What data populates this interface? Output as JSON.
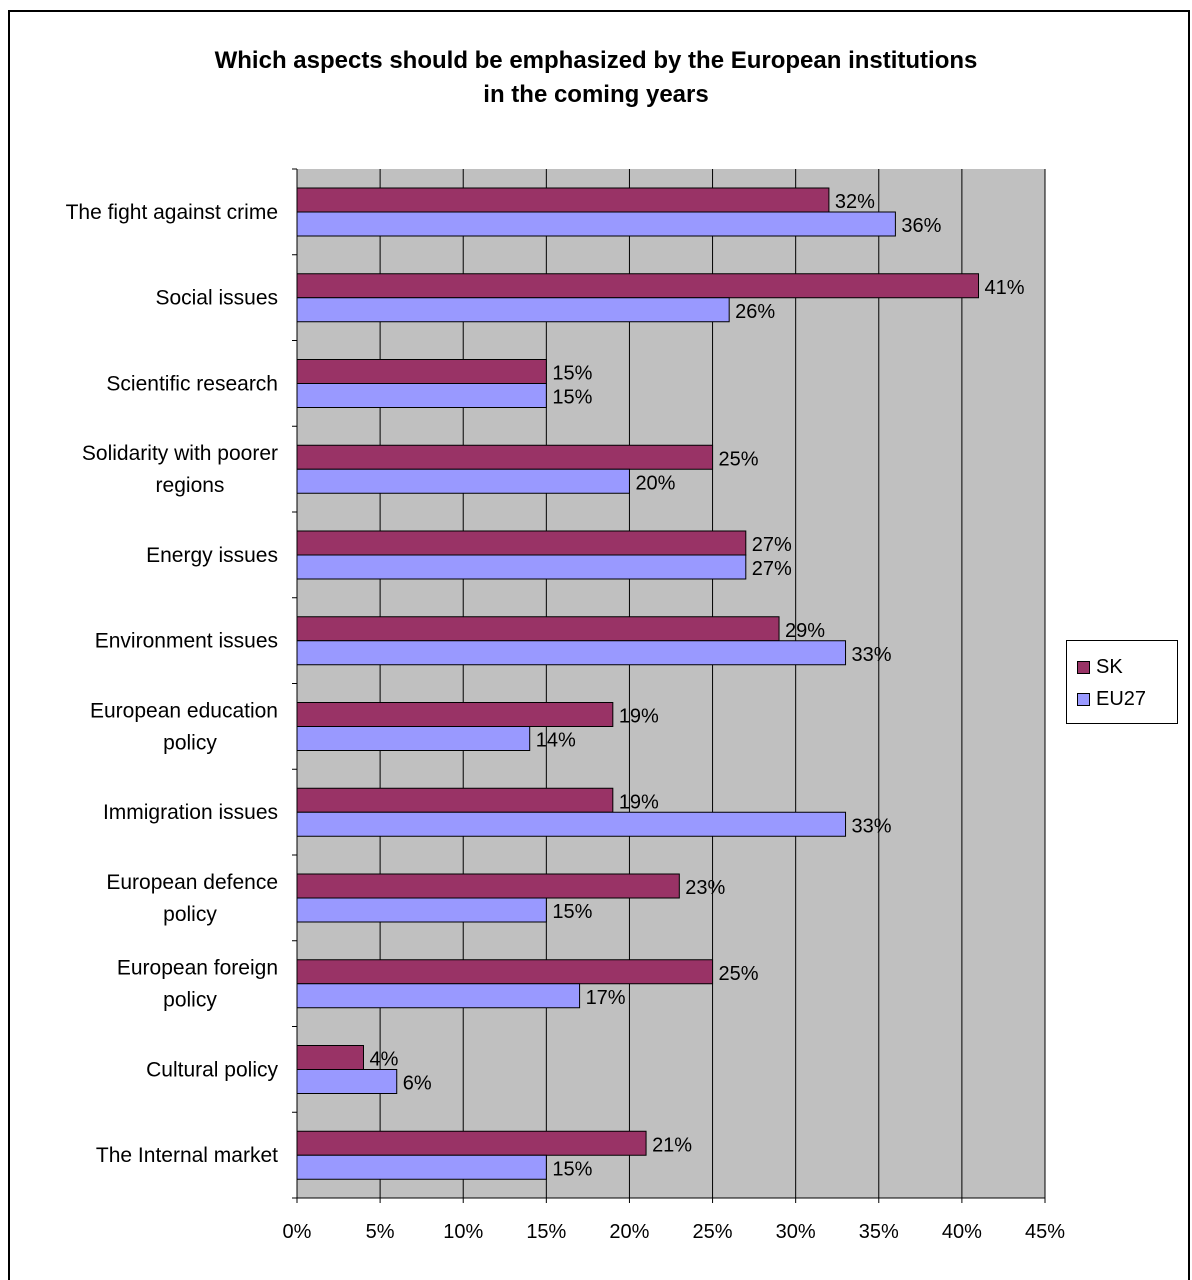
{
  "chart_data": {
    "type": "bar",
    "orientation": "horizontal",
    "title": [
      "Which aspects should be emphasized by the European institutions",
      "in the coming years"
    ],
    "categories": [
      [
        "The fight against crime"
      ],
      [
        "Social issues"
      ],
      [
        "Scientific research"
      ],
      [
        "Solidarity with poorer",
        "regions"
      ],
      [
        "Energy issues"
      ],
      [
        "Environment issues"
      ],
      [
        "European education",
        "policy"
      ],
      [
        "Immigration issues"
      ],
      [
        "European defence",
        "policy"
      ],
      [
        "European foreign",
        "policy"
      ],
      [
        "Cultural policy"
      ],
      [
        "The Internal market"
      ]
    ],
    "series": [
      {
        "name": "SK",
        "color": "#993366",
        "values": [
          32,
          41,
          15,
          25,
          27,
          29,
          19,
          19,
          23,
          25,
          4,
          21
        ],
        "labels": [
          "32%",
          "41%",
          "15%",
          "25%",
          "27%",
          "29%",
          "19%",
          "19%",
          "23%",
          "25%",
          "4%",
          "21%"
        ]
      },
      {
        "name": "EU27",
        "color": "#9999FF",
        "values": [
          36,
          26,
          15,
          20,
          27,
          33,
          14,
          33,
          15,
          17,
          6,
          15
        ],
        "labels": [
          "36%",
          "26%",
          "15%",
          "20%",
          "27%",
          "33%",
          "14%",
          "33%",
          "15%",
          "17%",
          "6%",
          "15%"
        ]
      }
    ],
    "xlim": [
      0,
      45
    ],
    "xticks": [
      0,
      5,
      10,
      15,
      20,
      25,
      30,
      35,
      40,
      45
    ],
    "xtick_labels": [
      "0%",
      "5%",
      "10%",
      "15%",
      "20%",
      "25%",
      "30%",
      "35%",
      "40%",
      "45%"
    ],
    "plot_background": "#C0C0C0",
    "grid": true,
    "legend_position": "right"
  }
}
